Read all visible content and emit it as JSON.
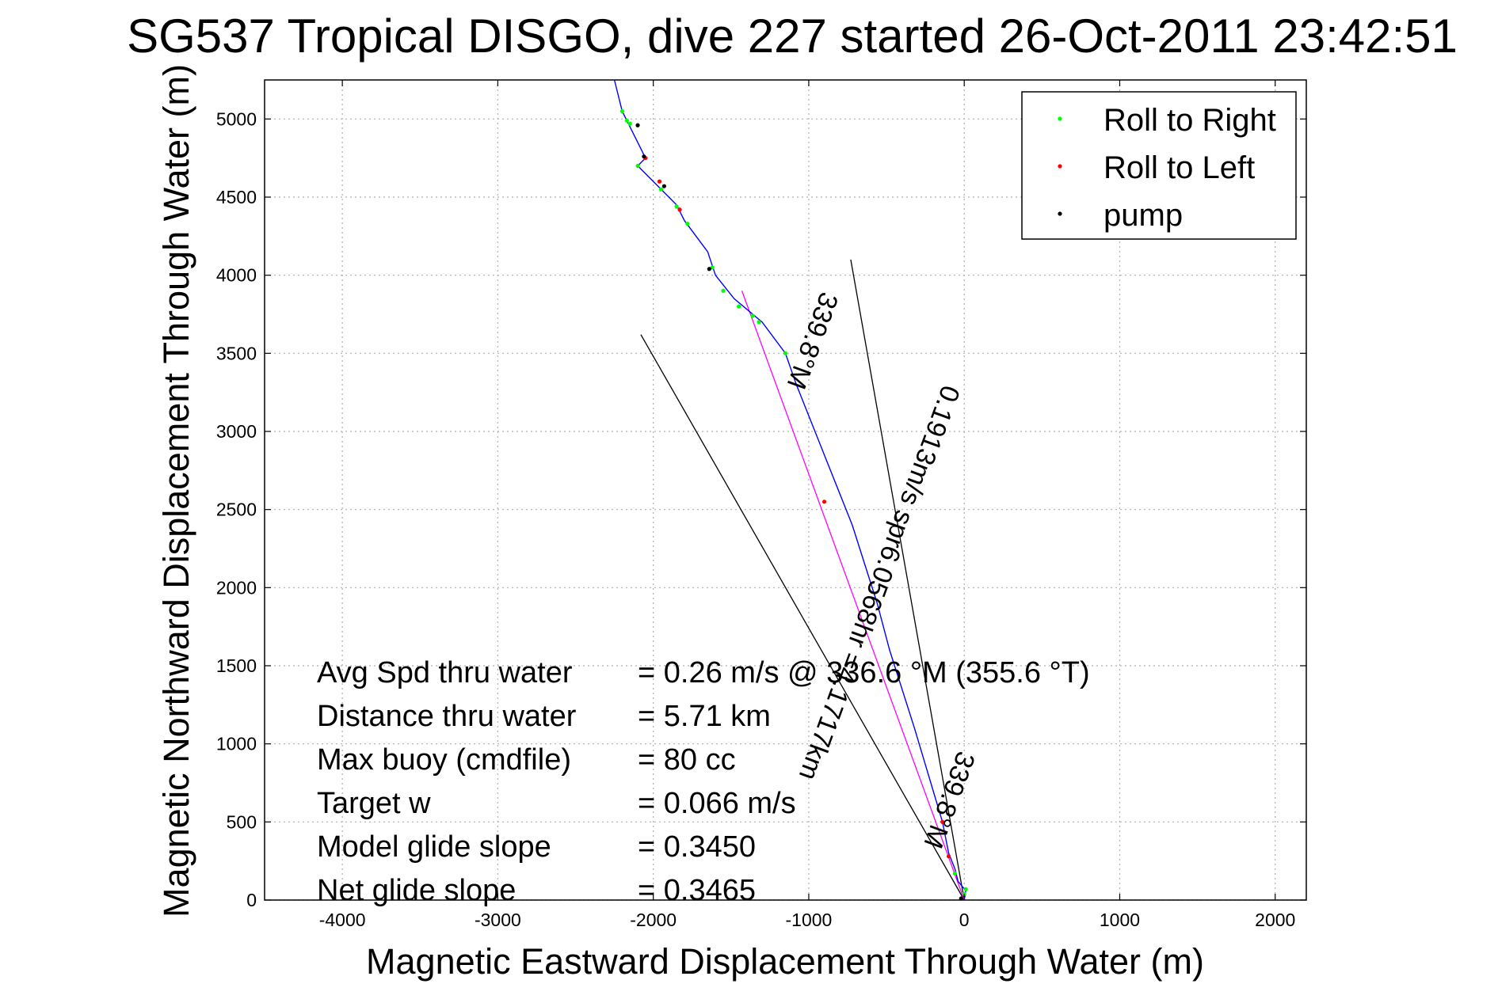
{
  "chart_data": {
    "type": "line",
    "title": "SG537 Tropical DISGO, dive 227 started 26-Oct-2011 23:42:51",
    "xlabel": "Magnetic Eastward Displacement Through Water (m)",
    "ylabel": "Magnetic Northward Displacement Through Water (m)",
    "xlim": [
      -4500,
      2200
    ],
    "ylim": [
      0,
      5250
    ],
    "xticks": [
      -4000,
      -3000,
      -2000,
      -1000,
      0,
      1000,
      2000
    ],
    "yticks": [
      0,
      500,
      1000,
      1500,
      2000,
      2500,
      3000,
      3500,
      4000,
      4500,
      5000
    ],
    "grid": true,
    "legend_position": "top-right",
    "legend": [
      {
        "label": "Roll to Right",
        "color": "#00ff00"
      },
      {
        "label": "Roll to Left",
        "color": "#ff0000"
      },
      {
        "label": "pump",
        "color": "#000000"
      }
    ],
    "series": [
      {
        "name": "track",
        "color": "#0000ff",
        "points": [
          [
            0,
            0
          ],
          [
            10,
            60
          ],
          [
            -40,
            120
          ],
          [
            -60,
            200
          ],
          [
            -100,
            300
          ],
          [
            -140,
            500
          ],
          [
            -200,
            700
          ],
          [
            -260,
            900
          ],
          [
            -320,
            1100
          ],
          [
            -400,
            1350
          ],
          [
            -480,
            1600
          ],
          [
            -560,
            1900
          ],
          [
            -640,
            2150
          ],
          [
            -720,
            2400
          ],
          [
            -800,
            2600
          ],
          [
            -900,
            2850
          ],
          [
            -1000,
            3100
          ],
          [
            -1080,
            3300
          ],
          [
            -1150,
            3500
          ],
          [
            -1300,
            3700
          ],
          [
            -1480,
            3850
          ],
          [
            -1600,
            4000
          ],
          [
            -1650,
            4150
          ],
          [
            -1800,
            4350
          ],
          [
            -1850,
            4450
          ],
          [
            -1950,
            4550
          ],
          [
            -2100,
            4700
          ],
          [
            -2050,
            4750
          ],
          [
            -2100,
            4850
          ],
          [
            -2150,
            4950
          ],
          [
            -2200,
            5050
          ],
          [
            -2250,
            5250
          ]
        ]
      }
    ],
    "roll_right": [
      [
        0,
        40
      ],
      [
        10,
        70
      ],
      [
        -60,
        170
      ],
      [
        -1150,
        3500
      ],
      [
        -1320,
        3700
      ],
      [
        -1360,
        3740
      ],
      [
        -1450,
        3800
      ],
      [
        -1550,
        3900
      ],
      [
        -1620,
        4050
      ],
      [
        -1780,
        4330
      ],
      [
        -1850,
        4440
      ],
      [
        -1950,
        4550
      ],
      [
        -2100,
        4700
      ],
      [
        -2150,
        4970
      ],
      [
        -2200,
        5050
      ],
      [
        -2170,
        4990
      ]
    ],
    "roll_left": [
      [
        -100,
        280
      ],
      [
        -140,
        500
      ],
      [
        -900,
        2550
      ],
      [
        -1830,
        4420
      ],
      [
        -2050,
        4750
      ],
      [
        -1960,
        4600
      ]
    ],
    "pump": [
      [
        -20,
        10
      ],
      [
        -1640,
        4040
      ],
      [
        -2060,
        4760
      ],
      [
        -1930,
        4570
      ],
      [
        -2100,
        4960
      ]
    ],
    "guide_lines": [
      {
        "color": "#000000",
        "points": [
          [
            0,
            0
          ],
          [
            -2080,
            3620
          ]
        ]
      },
      {
        "color": "#000000",
        "points": [
          [
            0,
            0
          ],
          [
            -730,
            4100
          ]
        ]
      },
      {
        "color": "#ff00ff",
        "points": [
          [
            0,
            0
          ],
          [
            -1430,
            3900
          ]
        ]
      }
    ],
    "annotations": [
      {
        "text": "0.1913m/s spr6.0568hr =4.1717km",
        "x": -600,
        "y": 2050,
        "angle_deg": -20.2
      },
      {
        "text": "339.8°M",
        "x": -1030,
        "y": 3600,
        "angle_deg": -20.2
      },
      {
        "text": "339.8°M",
        "x": -150,
        "y": 660,
        "angle_deg": -20.2
      }
    ]
  },
  "stats": [
    {
      "label": "Avg Spd thru water",
      "value": "=  0.26 m/s @ 336.6 °M (355.6 °T)"
    },
    {
      "label": "Distance thru water",
      "value": "=  5.71 km"
    },
    {
      "label": "Max buoy (cmdfile)",
      "value": "= 80 cc"
    },
    {
      "label": "Target w",
      "value": "= 0.066 m/s"
    },
    {
      "label": "Model glide slope",
      "value": "= 0.3450"
    },
    {
      "label": "Net glide slope",
      "value": "= 0.3465"
    }
  ]
}
